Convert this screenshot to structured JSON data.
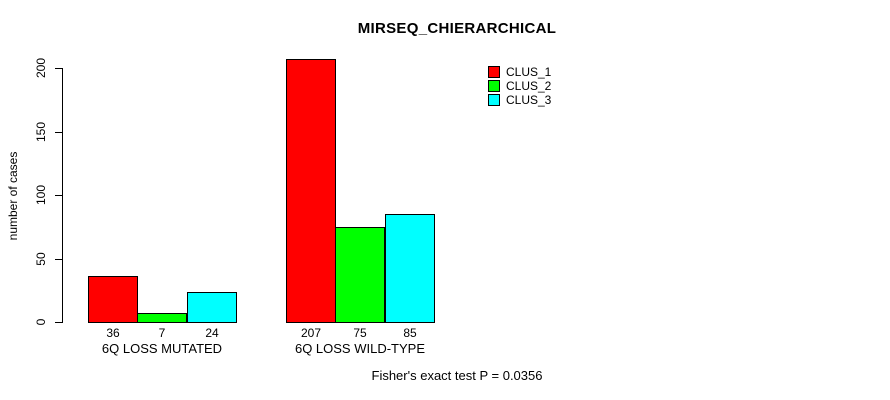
{
  "title": "MIRSEQ_CHIERARCHICAL",
  "footer": "Fisher's exact test P = 0.0356",
  "chart_data": {
    "type": "bar",
    "categories": [
      "6Q LOSS MUTATED",
      "6Q LOSS WILD-TYPE"
    ],
    "series": [
      {
        "name": "CLUS_1",
        "color": "#ff0000",
        "values": [
          36,
          207
        ]
      },
      {
        "name": "CLUS_2",
        "color": "#00ff00",
        "values": [
          7,
          75
        ]
      },
      {
        "name": "CLUS_3",
        "color": "#00ffff",
        "values": [
          24,
          85
        ]
      }
    ],
    "bar_value_labels": [
      [
        "36",
        "7",
        "24"
      ],
      [
        "207",
        "75",
        "85"
      ]
    ],
    "ylabel": "number of cases",
    "xlabel": "",
    "yticks": [
      0,
      50,
      100,
      150,
      200
    ],
    "ylim": [
      0,
      207
    ],
    "grid": false,
    "legend_position": "top-right",
    "annotation": "Fisher's exact test P = 0.0356"
  }
}
